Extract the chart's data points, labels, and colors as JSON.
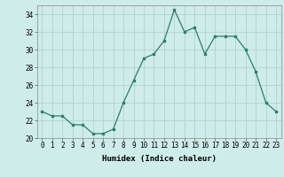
{
  "x": [
    0,
    1,
    2,
    3,
    4,
    5,
    6,
    7,
    8,
    9,
    10,
    11,
    12,
    13,
    14,
    15,
    16,
    17,
    18,
    19,
    20,
    21,
    22,
    23
  ],
  "y": [
    23,
    22.5,
    22.5,
    21.5,
    21.5,
    20.5,
    20.5,
    21,
    24,
    26.5,
    29,
    29.5,
    31,
    34.5,
    32,
    32.5,
    29.5,
    31.5,
    31.5,
    31.5,
    30,
    27.5,
    24,
    23
  ],
  "line_color": "#2e7d6e",
  "marker": "s",
  "marker_size": 2,
  "bg_color": "#cdecea",
  "grid_color": "#b0ccc8",
  "xlabel": "Humidex (Indice chaleur)",
  "xlim": [
    -0.5,
    23.5
  ],
  "ylim": [
    20,
    35
  ],
  "yticks": [
    20,
    22,
    24,
    26,
    28,
    30,
    32,
    34
  ],
  "xticks": [
    0,
    1,
    2,
    3,
    4,
    5,
    6,
    7,
    8,
    9,
    10,
    11,
    12,
    13,
    14,
    15,
    16,
    17,
    18,
    19,
    20,
    21,
    22,
    23
  ],
  "label_fontsize": 6.5,
  "tick_fontsize": 5.5
}
